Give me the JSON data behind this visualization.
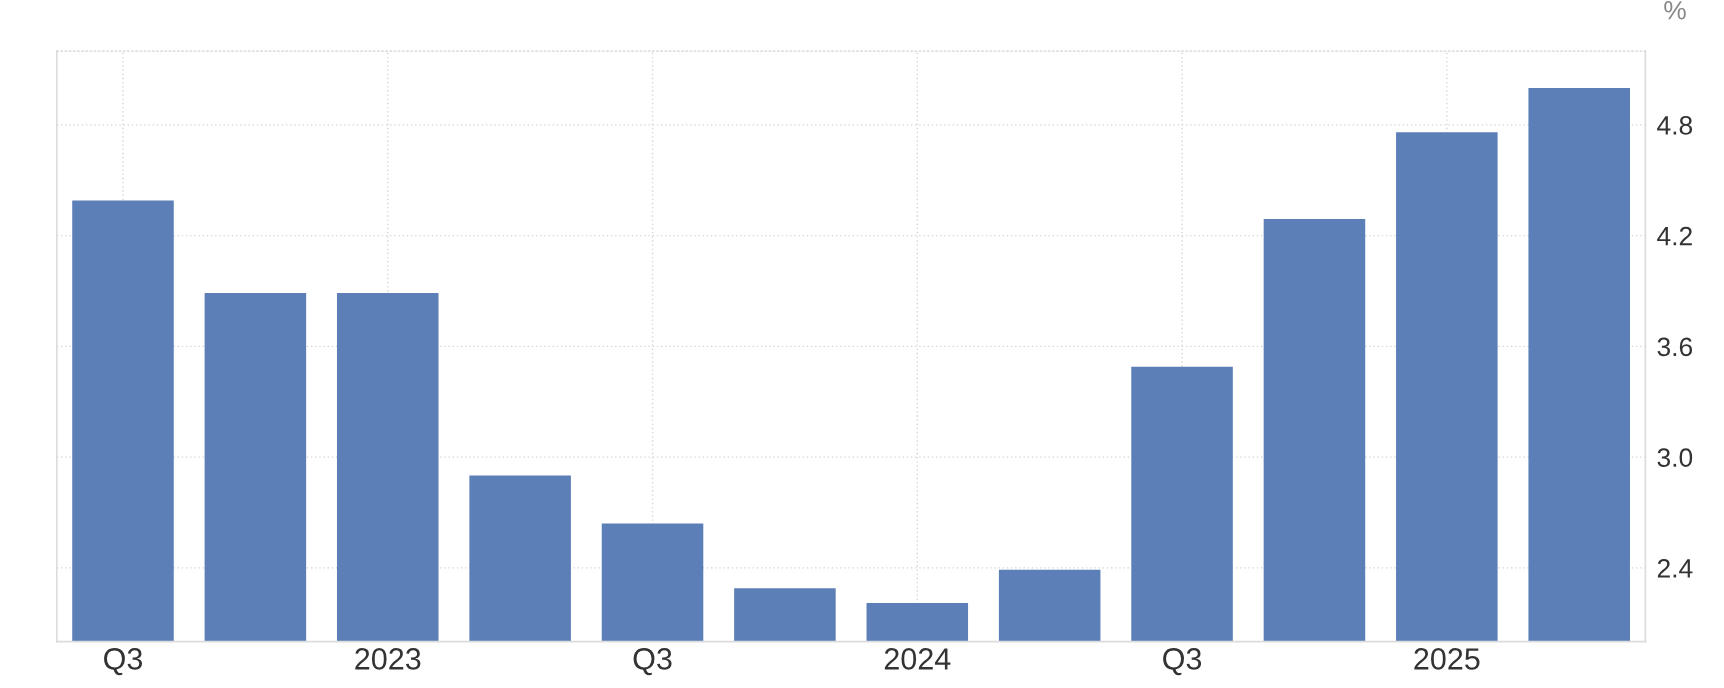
{
  "chart_data": {
    "type": "bar",
    "ylabel": "%",
    "categories": [
      "Q3",
      null,
      "2023",
      null,
      "Q3",
      null,
      "2024",
      null,
      "Q3",
      null,
      "2025",
      null
    ],
    "values": [
      4.39,
      3.89,
      3.89,
      2.9,
      2.64,
      2.29,
      2.21,
      2.39,
      3.49,
      4.29,
      4.76,
      5.0
    ],
    "color": "#5b7fb6",
    "ylim": [
      2.0,
      5.2
    ],
    "yticks": [
      2.4,
      {
        "value": 3,
        "label": "3.0"
      },
      3.6,
      4.2,
      4.8
    ],
    "grid": true
  }
}
